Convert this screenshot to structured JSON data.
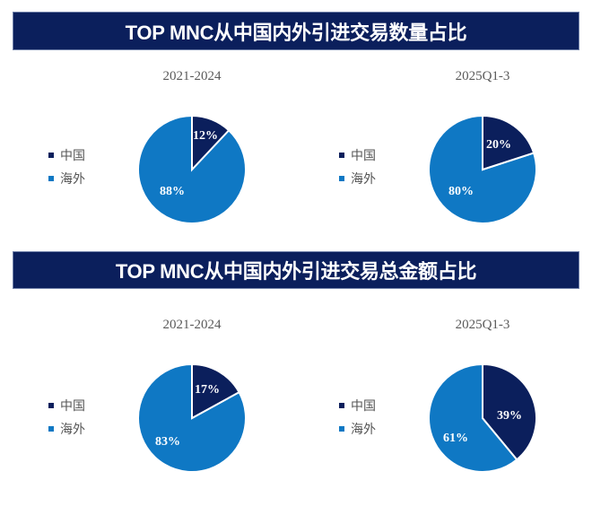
{
  "colors": {
    "china": "#0b1f5c",
    "overseas": "#0f78c4",
    "banner_bg": "#0b1f5c",
    "banner_text": "#ffffff"
  },
  "legend": {
    "china": "中国",
    "overseas": "海外"
  },
  "sections": [
    {
      "title": "TOP MNC从中国内外引进交易数量占比",
      "charts": [
        {
          "period": "2021-2024",
          "china_label": "12%",
          "overseas_label": "88%"
        },
        {
          "period": "2025Q1-3",
          "china_label": "20%",
          "overseas_label": "80%"
        }
      ]
    },
    {
      "title": "TOP MNC从中国内外引进交易总金额占比",
      "charts": [
        {
          "period": "2021-2024",
          "china_label": "17%",
          "overseas_label": "83%"
        },
        {
          "period": "2025Q1-3",
          "china_label": "39%",
          "overseas_label": "61%"
        }
      ]
    }
  ],
  "chart_data": [
    {
      "type": "pie",
      "title": "TOP MNC从中国内外引进交易数量占比 — 2021-2024",
      "categories": [
        "中国",
        "海外"
      ],
      "values": [
        12,
        88
      ],
      "legend_position": "left"
    },
    {
      "type": "pie",
      "title": "TOP MNC从中国内外引进交易数量占比 — 2025Q1-3",
      "categories": [
        "中国",
        "海外"
      ],
      "values": [
        20,
        80
      ],
      "legend_position": "left"
    },
    {
      "type": "pie",
      "title": "TOP MNC从中国内外引进交易总金额占比 — 2021-2024",
      "categories": [
        "中国",
        "海外"
      ],
      "values": [
        17,
        83
      ],
      "legend_position": "left"
    },
    {
      "type": "pie",
      "title": "TOP MNC从中国内外引进交易总金额占比 — 2025Q1-3",
      "categories": [
        "中国",
        "海外"
      ],
      "values": [
        39,
        61
      ],
      "legend_position": "left"
    }
  ]
}
